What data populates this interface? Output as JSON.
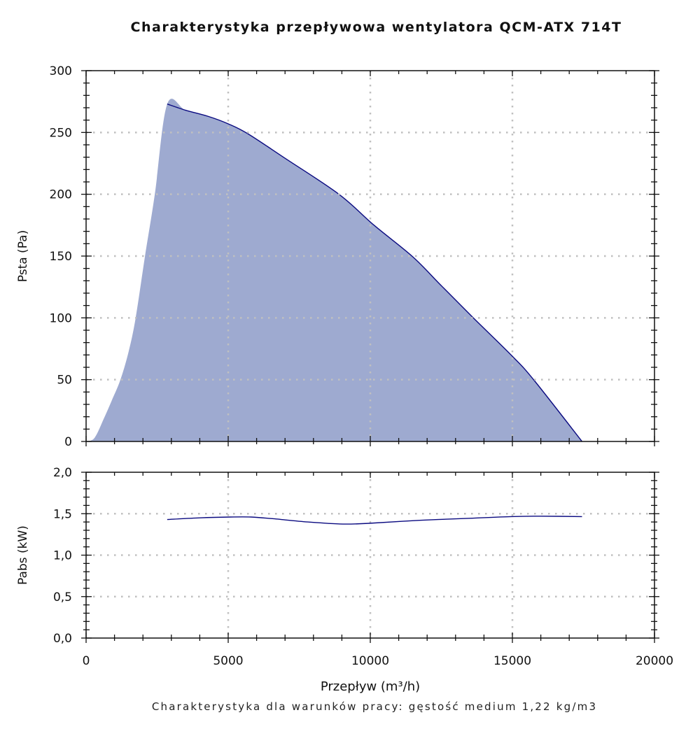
{
  "title": "Charakterystyka przepływowa wentylatora QCM-ATX 714T",
  "footer": "Charakterystyka dla warunków pracy: gęstość medium 1,22 kg/m3",
  "colors": {
    "fill": "#9eaad0",
    "line": "#0a0a80",
    "grid": "#c0c0c0",
    "axis": "#111111"
  },
  "chart_data": [
    {
      "type": "area",
      "title": "Charakterystyka przepływowa wentylatora QCM-ATX 714T",
      "xlabel": "",
      "ylabel": "Psta (Pa)",
      "xlim": [
        0,
        20000
      ],
      "ylim": [
        0,
        300
      ],
      "xticks": [
        0,
        5000,
        10000,
        15000,
        20000
      ],
      "yticks": [
        0,
        50,
        100,
        150,
        200,
        250,
        300
      ],
      "ytick_labels": [
        "0",
        "50",
        "100",
        "150",
        "200",
        "250",
        "300"
      ],
      "grid": true,
      "series": [
        {
          "name": "Psta",
          "x": [
            0,
            300,
            634,
            900,
            1209,
            1500,
            1744,
            2073,
            2418,
            2854,
            3500,
            4300,
            5000,
            5690,
            7010,
            8898,
            10130,
            11490,
            12500,
            13626,
            14997,
            15760,
            17450,
            20000
          ],
          "y": [
            0,
            3,
            19,
            33,
            50,
            73,
            100,
            150,
            200,
            273,
            268,
            263,
            257,
            249,
            229,
            200,
            175,
            149.5,
            126,
            100,
            69,
            49.6,
            0,
            0
          ]
        }
      ]
    },
    {
      "type": "line",
      "xlabel": "Przepływ (m³/h)",
      "ylabel": "Pabs (kW)",
      "xlim": [
        0,
        20000
      ],
      "ylim": [
        0,
        2.0
      ],
      "xticks": [
        0,
        5000,
        10000,
        15000,
        20000
      ],
      "xtick_labels": [
        "0",
        "5000",
        "10000",
        "15000",
        "20000"
      ],
      "yticks": [
        0,
        0.5,
        1.0,
        1.5,
        2.0
      ],
      "ytick_labels": [
        "0,0",
        "0,5",
        "1,0",
        "1,5",
        "2,0"
      ],
      "grid": true,
      "series": [
        {
          "name": "Pabs",
          "x": [
            2854,
            4000,
            5080,
            5800,
            6560,
            7800,
            9030,
            10000,
            11740,
            13500,
            14950,
            16000,
            17450
          ],
          "y": [
            1.43,
            1.45,
            1.46,
            1.46,
            1.44,
            1.4,
            1.375,
            1.385,
            1.42,
            1.445,
            1.465,
            1.47,
            1.465
          ]
        }
      ]
    }
  ]
}
